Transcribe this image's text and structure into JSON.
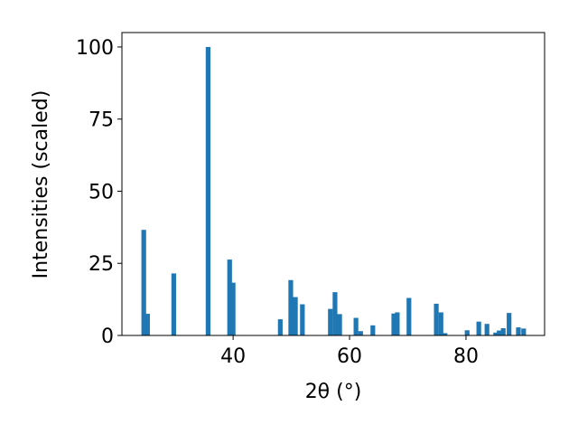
{
  "chart_data": {
    "type": "bar",
    "xlabel": "2θ (°)",
    "ylabel": "Intensities (scaled)",
    "x": [
      24.65,
      25.3,
      29.8,
      35.7,
      39.4,
      40.0,
      48.1,
      49.9,
      50.7,
      51.9,
      56.7,
      57.5,
      58.3,
      61.1,
      61.9,
      64.0,
      67.6,
      68.2,
      70.2,
      74.9,
      75.7,
      76.4,
      80.2,
      82.2,
      83.6,
      85.1,
      85.7,
      86.4,
      87.4,
      89.0,
      89.9
    ],
    "values": [
      36.6,
      7.5,
      21.5,
      100,
      26.3,
      18.3,
      5.6,
      19.2,
      13.3,
      10.8,
      9.2,
      15,
      7.4,
      6.1,
      1.5,
      3.5,
      7.6,
      8,
      13,
      11,
      8,
      0.8,
      1.8,
      4.8,
      4,
      1,
      1.7,
      2.5,
      7.8,
      2.8,
      2.4
    ],
    "color": "#1f77b4",
    "xlim": [
      20.9,
      93.5
    ],
    "xticks": [
      40,
      60,
      80
    ],
    "ylim": [
      0,
      105
    ],
    "yticks": [
      0,
      25,
      50,
      75,
      100
    ]
  }
}
